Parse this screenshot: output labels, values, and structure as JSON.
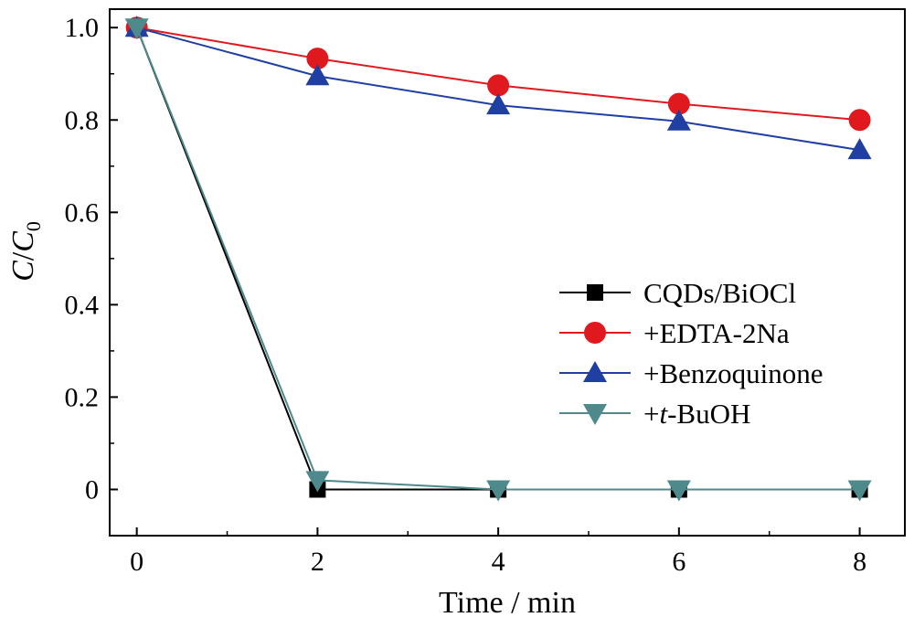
{
  "chart_data": {
    "type": "line",
    "xlabel": "Time / min",
    "ylabel_main": "C",
    "ylabel_slash": "/",
    "ylabel_base": "C",
    "ylabel_sub": "0",
    "xlim": [
      -0.3,
      8.5
    ],
    "ylim": [
      -0.1,
      1.04
    ],
    "x_ticks": [
      0,
      2,
      4,
      6,
      8
    ],
    "x_tick_labels": [
      "0",
      "2",
      "4",
      "6",
      "8"
    ],
    "y_ticks": [
      0,
      0.2,
      0.4,
      0.6,
      0.8,
      1.0
    ],
    "y_tick_labels": [
      "0",
      "0.2",
      "0.4",
      "0.6",
      "0.8",
      "1.0"
    ],
    "grid": false,
    "legend_position": "center-right",
    "x": [
      0,
      2,
      4,
      6,
      8
    ],
    "series": [
      {
        "name_prefix": "CQDs/BiOCl",
        "name_italic": "",
        "name_suffix": "",
        "values": [
          1.0,
          0.0,
          0.0,
          0.0,
          0.0
        ],
        "color": "#000000",
        "marker": "square"
      },
      {
        "name_prefix": "+EDTA-2Na",
        "name_italic": "",
        "name_suffix": "",
        "values": [
          1.0,
          0.933,
          0.875,
          0.835,
          0.8
        ],
        "color": "#e0191f",
        "marker": "circle"
      },
      {
        "name_prefix": "+Benzoquinone",
        "name_italic": "",
        "name_suffix": "",
        "values": [
          1.0,
          0.895,
          0.832,
          0.797,
          0.735
        ],
        "color": "#1f3fa3",
        "marker": "triangle-up"
      },
      {
        "name_prefix": "+",
        "name_italic": "t",
        "name_suffix": "-BuOH",
        "values": [
          1.0,
          0.02,
          0.0,
          0.0,
          0.0
        ],
        "color": "#4e8a8c",
        "marker": "triangle-down"
      }
    ]
  }
}
